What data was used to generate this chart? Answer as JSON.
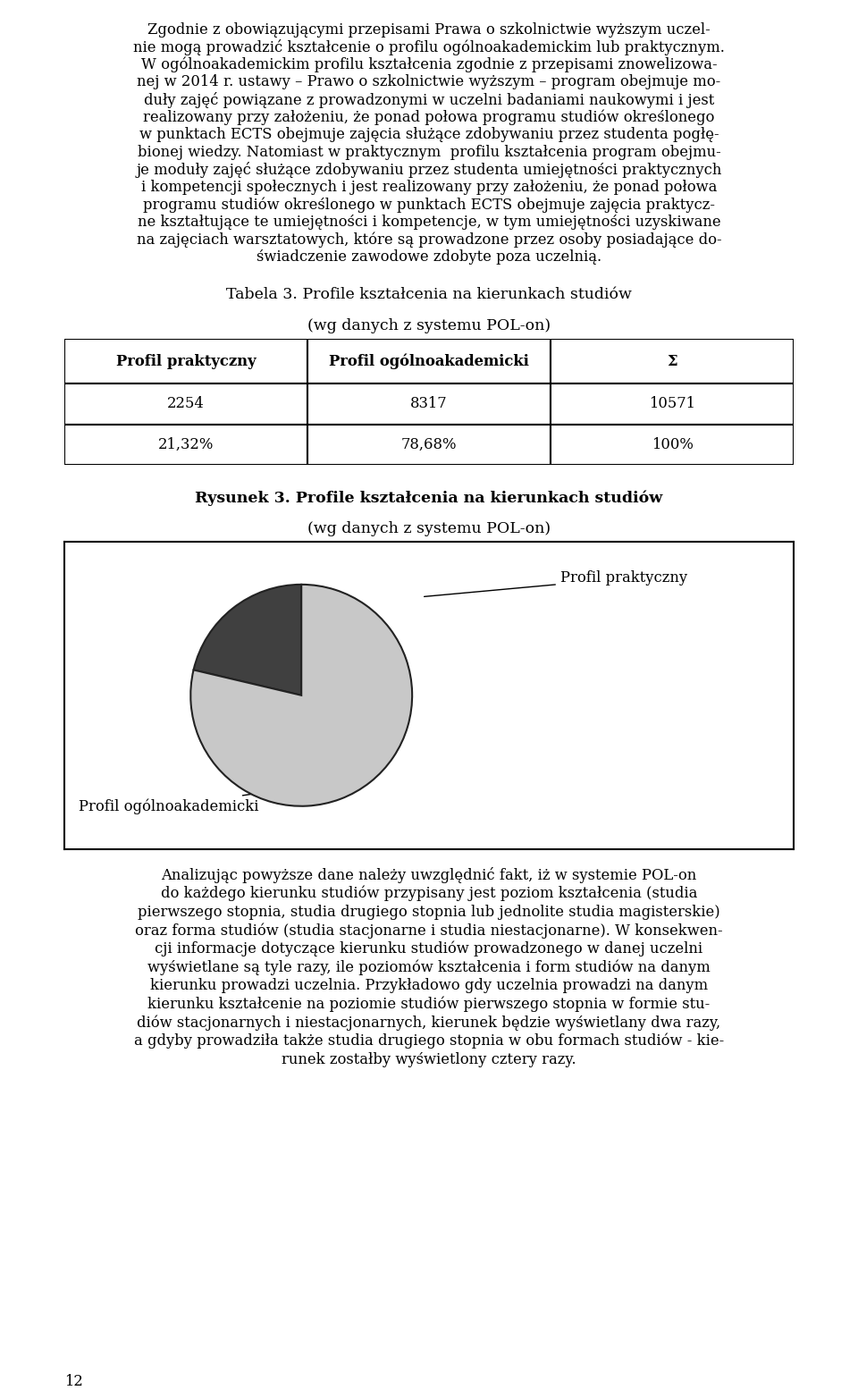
{
  "page_bg": "#ffffff",
  "top_text_lines": [
    "Zgodnie z obowiązującymi przepisami Prawa o szkolnictwie wyższym uczel-",
    "nie mogą prowadzić kształcenie o profilu ogólnoakademickim lub praktycznym.",
    "W ogólnoakademickim profilu kształcenia zgodnie z przepisami znowelizowa-",
    "nej w 2014 r. ustawy – Prawo o szkolnictwie wyższym – program obejmuje mo-",
    "duły zajęć powiązane z prowadzonymi w uczelni badaniami naukowymi i jest",
    "realizowany przy założeniu, że ponad połowa programu studiów określonego",
    "w punktach ECTS obejmuje zajęcia służące zdobywaniu przez studenta pogłę-",
    "bionej wiedzy. Natomiast w praktycznym  profilu kształcenia program obejmu-",
    "je moduły zajęć służące zdobywaniu przez studenta umiejętności praktycznych",
    "i kompetencji społecznych i jest realizowany przy założeniu, że ponad połowa",
    "programu studiów określonego w punktach ECTS obejmuje zajęcia praktycz-",
    "ne kształtujące te umiejętności i kompetencje, w tym umiejętności uzyskiwane",
    "na zajęciach warsztatowych, które są prowadzone przez osoby posiadające do-",
    "świadczenie zawodowe zdobyte poza uczelnią."
  ],
  "table_title_bold": "Tabela 3.",
  "table_title_rest": " Profile kształcenia na kierunkach studiów",
  "table_subtitle": "(wg danych z systemu POL-on)",
  "table_headers": [
    "Profil praktyczny",
    "Profil ogólnoakademicki",
    "Σ"
  ],
  "table_row1": [
    "2254",
    "8317",
    "10571"
  ],
  "table_row2": [
    "21,32%",
    "78,68%",
    "100%"
  ],
  "figure_title_bold": "Rysunek 3.",
  "figure_title_rest": " Profile kształcenia na kierunkach studiów",
  "figure_subtitle": "(wg danych z systemu POL-on)",
  "pie_values": [
    21.32,
    78.68
  ],
  "pie_labels": [
    "Profil praktyczny",
    "Profil ogólnoakademicki"
  ],
  "pie_colors": [
    "#404040",
    "#c8c8c8"
  ],
  "pie_edge_color": "#222222",
  "bottom_text_lines": [
    "Analizując powyższe dane należy uwzględnić fakt, iż w systemie POL-on",
    "do każdego kierunku studiów przypisany jest poziom kształcenia (studia",
    "pierwszego stopnia, studia drugiego stopnia lub jednolite studia magisterskie)",
    "oraz forma studiów (studia stacjonarne i studia niestacjonarne). W konsekwen-",
    "cji informacje dotyczące kierunku studiów prowadzonego w danej uczelni",
    "wyświetlane są tyle razy, ile poziomów kształcenia i form studiów na danym",
    "kierunku prowadzi uczelnia. Przykładowo gdy uczelnia prowadzi na danym",
    "kierunku kształcenie na poziomie studiów pierwszego stopnia w formie stu-",
    "diów stacjonarnych i niestacjonarnych, kierunek będzie wyświetlany dwa razy,",
    "a gdyby prowadziła także studia drugiego stopnia w obu formach studiów - kie-",
    "runek zostałby wyświetlony cztery razy."
  ],
  "page_number": "12",
  "font_size_body": 11.8,
  "font_size_table_header": 11.8,
  "font_size_table_data": 11.8,
  "font_size_caption": 12.5
}
